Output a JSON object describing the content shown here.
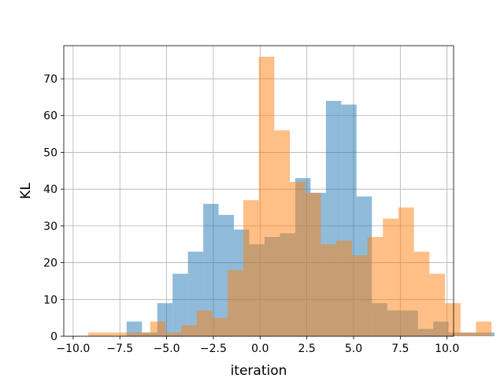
{
  "chart_data": {
    "type": "bar",
    "subtype": "overlaid-histogram",
    "title": "",
    "xlabel": "iteration",
    "ylabel": "KL",
    "xlim": [
      -10.5,
      10.35
    ],
    "ylim": [
      0,
      79
    ],
    "grid": true,
    "legend": "none",
    "x_ticks": [
      -10.0,
      -7.5,
      -5.0,
      -2.5,
      0.0,
      2.5,
      5.0,
      7.5,
      10.0
    ],
    "x_tick_labels": [
      "−10.0",
      "−7.5",
      "−5.0",
      "−2.5",
      "0.0",
      "2.5",
      "5.0",
      "7.5",
      "10.0"
    ],
    "y_ticks": [
      0,
      10,
      20,
      30,
      40,
      50,
      60,
      70
    ],
    "y_tick_labels": [
      "0",
      "10",
      "20",
      "30",
      "40",
      "50",
      "60",
      "70"
    ],
    "series": [
      {
        "color": "#1f77b4",
        "opacity": 0.5,
        "bin_start": -9.6,
        "bin_width": 0.82,
        "counts": [
          0,
          0,
          0,
          4,
          1,
          9,
          17,
          23,
          36,
          33,
          29,
          25,
          27,
          28,
          43,
          39,
          64,
          63,
          38,
          9,
          7,
          7,
          2,
          4,
          1,
          1,
          1
        ]
      },
      {
        "color": "#ff7f0e",
        "opacity": 0.5,
        "bin_start": -9.2,
        "bin_width": 0.83,
        "counts": [
          1,
          1,
          1,
          1,
          4,
          1,
          3,
          7,
          5,
          18,
          37,
          76,
          56,
          42,
          39,
          25,
          26,
          22,
          27,
          32,
          35,
          23,
          17,
          9,
          1,
          4
        ]
      }
    ]
  }
}
